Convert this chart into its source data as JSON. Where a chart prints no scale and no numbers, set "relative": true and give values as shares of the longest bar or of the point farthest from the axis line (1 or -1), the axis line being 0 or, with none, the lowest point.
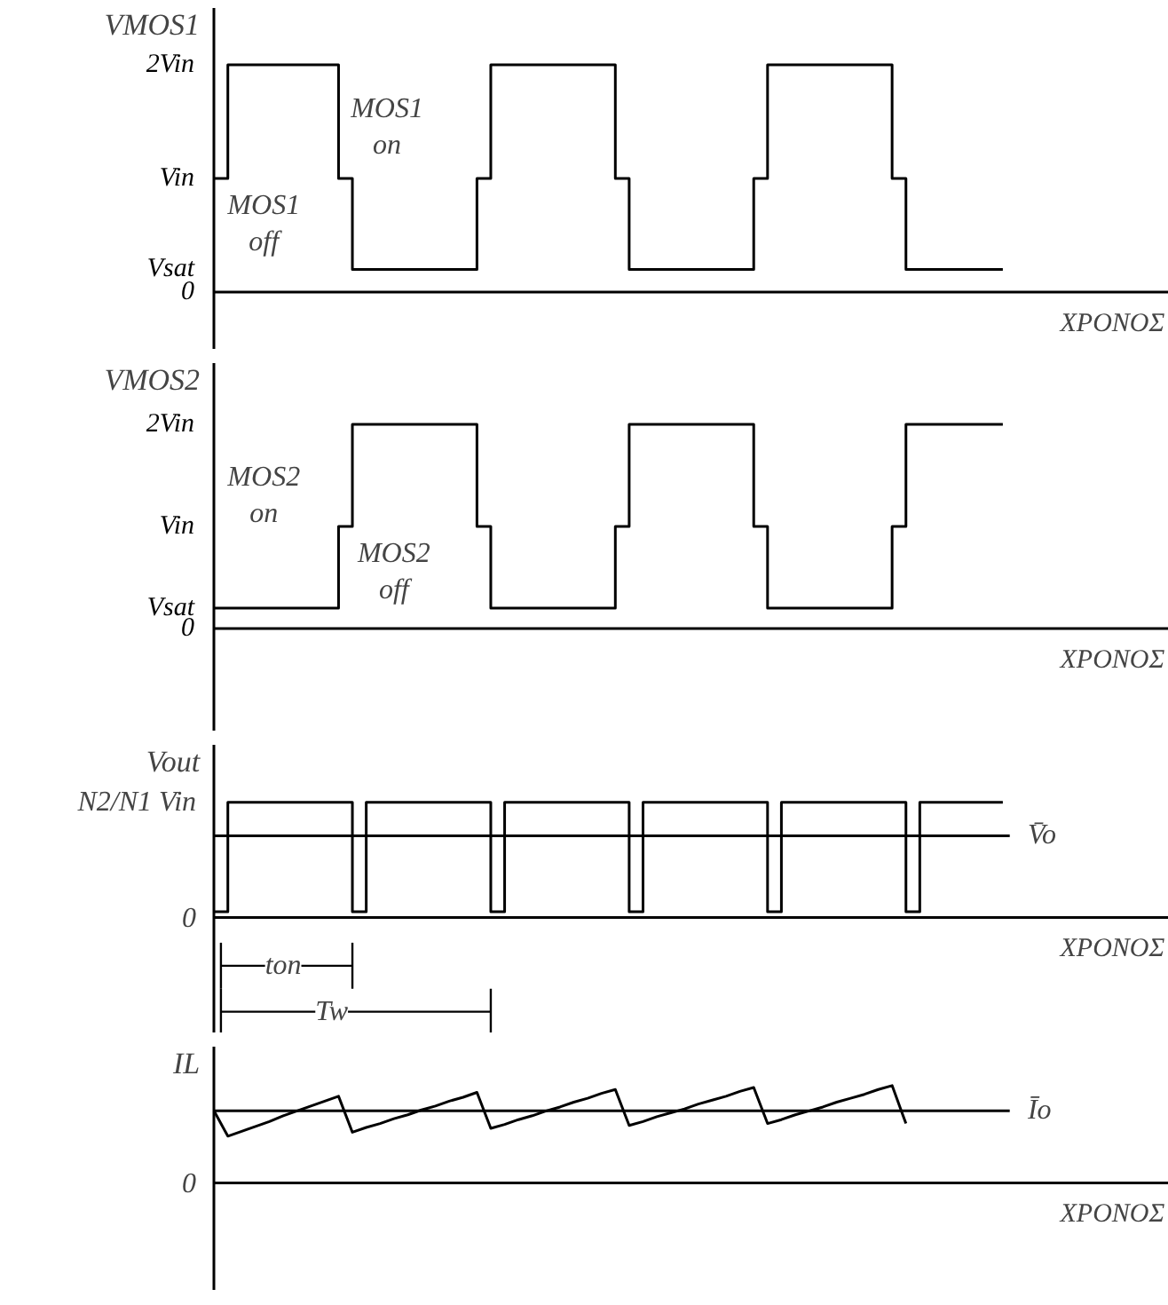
{
  "chart_data": [
    {
      "type": "step",
      "ylabel": "VMOS1",
      "xlabel": "ΧΡΟΝΟΣ",
      "categories": [
        null,
        null,
        null,
        null,
        null,
        null,
        null,
        null,
        null,
        null,
        null,
        null,
        null,
        null,
        null,
        null,
        null,
        null,
        null,
        null,
        null,
        null,
        null,
        null,
        null,
        null,
        null,
        null,
        null,
        null,
        null,
        null,
        null,
        null,
        null,
        null,
        null,
        null,
        null,
        null,
        null,
        null,
        null,
        null,
        null,
        null,
        null,
        null,
        null,
        null,
        null,
        null,
        null,
        null,
        null,
        null,
        null,
        null
      ],
      "series": [
        {
          "color": "#000000",
          "values": [
            1,
            2,
            2,
            2,
            2,
            2,
            2,
            2,
            2,
            1,
            0.2,
            0.2,
            0.2,
            0.2,
            0.2,
            0.2,
            0.2,
            0.2,
            0.2,
            1,
            2,
            2,
            2,
            2,
            2,
            2,
            2,
            2,
            2,
            1,
            0.2,
            0.2,
            0.2,
            0.2,
            0.2,
            0.2,
            0.2,
            0.2,
            0.2,
            1,
            2,
            2,
            2,
            2,
            2,
            2,
            2,
            2,
            2,
            1,
            0.2,
            0.2,
            0.2,
            0.2,
            0.2,
            0.2,
            0.2,
            0.2
          ]
        }
      ],
      "ylim": [
        -0.5,
        2.5
      ],
      "yticks": [
        0,
        {
          "value": 0.2,
          "label": "Vsat"
        },
        {
          "value": 1,
          "label": "Vin"
        },
        {
          "value": 2,
          "label": "2Vin"
        }
      ],
      "tick_labels": "y",
      "annotations": [
        "MOS1\noff",
        "MOS1\non"
      ]
    },
    {
      "type": "step",
      "ylabel": "VMOS2",
      "xlabel": "ΧΡΟΝΟΣ",
      "categories": [
        null,
        null,
        null,
        null,
        null,
        null,
        null,
        null,
        null,
        null,
        null,
        null,
        null,
        null,
        null,
        null,
        null,
        null,
        null,
        null,
        null,
        null,
        null,
        null,
        null,
        null,
        null,
        null,
        null,
        null,
        null,
        null,
        null,
        null,
        null,
        null,
        null,
        null,
        null,
        null,
        null,
        null,
        null,
        null,
        null,
        null,
        null,
        null,
        null,
        null,
        null,
        null,
        null,
        null,
        null,
        null,
        null,
        null
      ],
      "series": [
        {
          "color": "#000000",
          "values": [
            0.2,
            0.2,
            0.2,
            0.2,
            0.2,
            0.2,
            0.2,
            0.2,
            0.2,
            1,
            2,
            2,
            2,
            2,
            2,
            2,
            2,
            2,
            2,
            1,
            0.2,
            0.2,
            0.2,
            0.2,
            0.2,
            0.2,
            0.2,
            0.2,
            0.2,
            1,
            2,
            2,
            2,
            2,
            2,
            2,
            2,
            2,
            2,
            1,
            0.2,
            0.2,
            0.2,
            0.2,
            0.2,
            0.2,
            0.2,
            0.2,
            0.2,
            1,
            2,
            2,
            2,
            2,
            2,
            2,
            2,
            2
          ]
        }
      ],
      "ylim": [
        -1.0,
        2.6
      ],
      "yticks": [
        0,
        {
          "value": 0.2,
          "label": "Vsat"
        },
        {
          "value": 1,
          "label": "Vin"
        },
        {
          "value": 2,
          "label": "2Vin"
        }
      ],
      "tick_labels": "y",
      "annotations": [
        "MOS2\non",
        "MOS2\noff"
      ]
    },
    {
      "type": "step",
      "ylabel": "Vout",
      "xlabel": "ΧΡΟΝΟΣ",
      "categories": [
        null,
        null,
        null,
        null,
        null,
        null,
        null,
        null,
        null,
        null,
        null,
        null,
        null,
        null,
        null,
        null,
        null,
        null,
        null,
        null,
        null,
        null,
        null,
        null,
        null,
        null,
        null,
        null,
        null,
        null,
        null,
        null,
        null,
        null,
        null,
        null,
        null,
        null,
        null,
        null,
        null,
        null,
        null,
        null,
        null,
        null,
        null,
        null,
        null,
        null,
        null,
        null,
        null,
        null,
        null,
        null,
        null,
        null
      ],
      "series": [
        {
          "color": "#000000",
          "values": [
            0.05,
            1,
            1,
            1,
            1,
            1,
            1,
            1,
            1,
            1,
            0.05,
            1,
            1,
            1,
            1,
            1,
            1,
            1,
            1,
            1,
            0.05,
            1,
            1,
            1,
            1,
            1,
            1,
            1,
            1,
            1,
            0.05,
            1,
            1,
            1,
            1,
            1,
            1,
            1,
            1,
            1,
            0.05,
            1,
            1,
            1,
            1,
            1,
            1,
            1,
            1,
            1,
            0.05,
            1,
            1,
            1,
            1,
            1,
            1,
            1
          ]
        }
      ],
      "relative": true,
      "tick_labels": false,
      "ref_lines": [
        {
          "axis": "y",
          "value": 0.71,
          "label": "V̄o"
        }
      ],
      "annotations": [
        "N2/N1 Vin",
        "0",
        "ton",
        "Tw"
      ]
    },
    {
      "type": "line",
      "relative": true,
      "ylabel": "IL",
      "xlabel": "ΧΡΟΝΟΣ",
      "categories": [
        null,
        null,
        null,
        null,
        null,
        null,
        null,
        null,
        null,
        null,
        null,
        null,
        null,
        null,
        null,
        null,
        null,
        null,
        null,
        null,
        null,
        null,
        null,
        null,
        null,
        null,
        null,
        null,
        null,
        null,
        null,
        null,
        null,
        null,
        null,
        null,
        null,
        null,
        null,
        null,
        null,
        null,
        null,
        null,
        null,
        null,
        null,
        null,
        null,
        null,
        null,
        null,
        null,
        null,
        null,
        null,
        null,
        null
      ],
      "series": [
        {
          "color": "#000000",
          "values": [
            0.74,
            0.48,
            0.53,
            0.58,
            0.63,
            0.69,
            0.74,
            0.79,
            0.84,
            0.89,
            0.52,
            0.57,
            0.61,
            0.66,
            0.7,
            0.75,
            0.79,
            0.84,
            0.88,
            0.93,
            0.56,
            0.6,
            0.65,
            0.69,
            0.74,
            0.78,
            0.83,
            0.87,
            0.92,
            0.96,
            0.59,
            0.63,
            0.68,
            0.72,
            0.76,
            0.81,
            0.85,
            0.89,
            0.94,
            0.98,
            0.61,
            0.65,
            0.7,
            0.74,
            0.78,
            0.83,
            0.87,
            0.91,
            0.96,
            1,
            0.61,
            null,
            null,
            null,
            null,
            null,
            null,
            null
          ]
        }
      ],
      "tick_labels": false,
      "ref_lines": [
        {
          "axis": "y",
          "value": 0.74,
          "label": "Īo"
        }
      ],
      "annotations": [
        "0"
      ]
    }
  ]
}
